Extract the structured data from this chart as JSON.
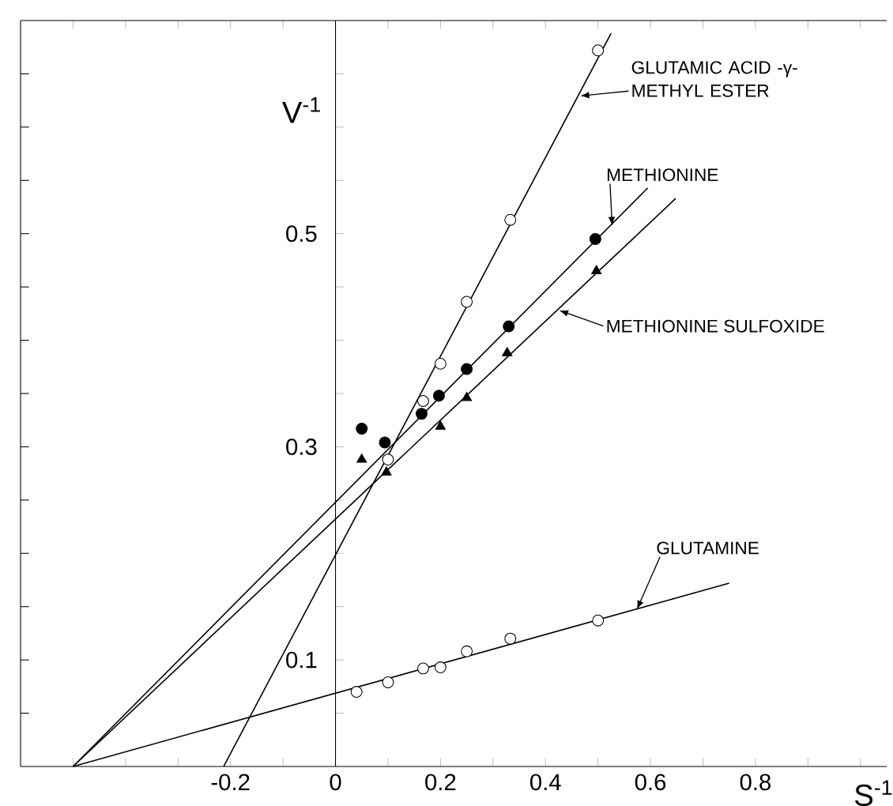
{
  "chart_data": {
    "type": "scatter",
    "xlabel": "S$^{-1}$",
    "ylabel": "V$^{-1}$",
    "xlim": [
      -0.6,
      1.05
    ],
    "ylim": [
      0,
      0.7
    ],
    "xticks": [
      {
        "value": -0.5,
        "label": null
      },
      {
        "value": -0.4,
        "label": null
      },
      {
        "value": -0.3,
        "label": null
      },
      -0.2,
      {
        "value": -0.1,
        "label": null
      },
      0,
      {
        "value": 0.1,
        "label": null
      },
      0.2,
      {
        "value": 0.3,
        "label": null
      },
      0.4,
      {
        "value": 0.5,
        "label": null
      },
      0.6,
      {
        "value": 0.7,
        "label": null
      },
      0.8,
      {
        "value": 0.9,
        "label": null
      },
      {
        "value": 1.0,
        "label": null
      }
    ],
    "yticks": [
      {
        "value": 0.05,
        "label": null
      },
      0.1,
      {
        "value": 0.15,
        "label": null
      },
      {
        "value": 0.2,
        "label": null
      },
      {
        "value": 0.25,
        "label": null
      },
      0.3,
      {
        "value": 0.35,
        "label": null
      },
      {
        "value": 0.4,
        "label": null
      },
      {
        "value": 0.45,
        "label": null
      },
      0.5,
      {
        "value": 0.55,
        "label": null
      },
      {
        "value": 0.6,
        "label": null
      },
      {
        "value": 0.65,
        "label": null
      }
    ],
    "series": [
      {
        "marker": "circle",
        "color": "#000000",
        "x": [
          0.1,
          0.167,
          0.2,
          0.25,
          0.333,
          0.5
        ],
        "values": [
          0.288,
          0.343,
          0.378,
          0.436,
          0.513,
          0.672
        ]
      },
      {
        "type": "line",
        "name": "GLUTAMIC ACID -γ- METHYL ESTER",
        "marker": "none",
        "line_style": "solid",
        "color": "#000000",
        "x": [
          -0.213,
          0.525
        ],
        "values": [
          0,
          0.688
        ]
      },
      {
        "marker": "circle",
        "color": "#000000",
        "x": [
          0.05,
          0.094,
          0.164,
          0.197,
          0.25,
          0.33,
          0.495
        ],
        "values": [
          0.317,
          0.304,
          0.331,
          0.348,
          0.373,
          0.413,
          0.495
        ]
      },
      {
        "type": "line",
        "name": "METHIONINE",
        "marker": "none",
        "line_style": "solid",
        "color": "#000000",
        "x": [
          -0.5,
          0.595
        ],
        "values": [
          0,
          0.543
        ]
      },
      {
        "marker": "triangle",
        "color": "#000000",
        "x": [
          0.05,
          0.097,
          0.2,
          0.25,
          0.327,
          0.497
        ],
        "values": [
          0.288,
          0.276,
          0.319,
          0.346,
          0.388,
          0.465
        ]
      },
      {
        "type": "line",
        "name": "METHIONINE SULFOXIDE",
        "marker": "none",
        "line_style": "solid",
        "color": "#000000",
        "x": [
          -0.5,
          0.648
        ],
        "values": [
          0,
          0.533
        ]
      },
      {
        "marker": "circle",
        "color": "#000000",
        "x": [
          0.04,
          0.1,
          0.167,
          0.2,
          0.25,
          0.333,
          0.5
        ],
        "values": [
          0.07,
          0.079,
          0.092,
          0.093,
          0.108,
          0.12,
          0.137
        ]
      },
      {
        "type": "line",
        "name": "GLUTAMINE",
        "marker": "none",
        "line_style": "solid",
        "color": "#000000",
        "x": [
          -0.5,
          0.75
        ],
        "values": [
          0,
          0.172
        ]
      }
    ]
  }
}
